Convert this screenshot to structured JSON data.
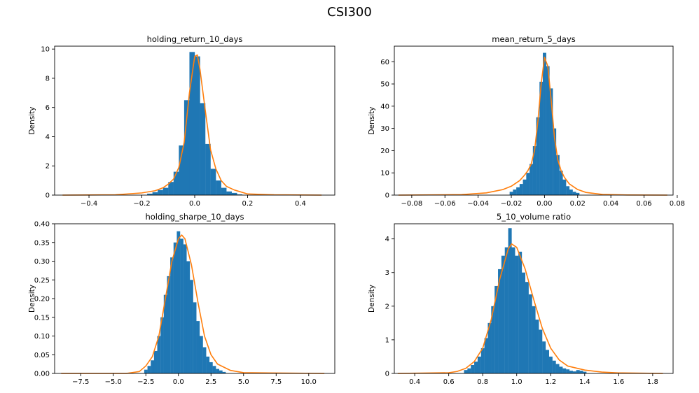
{
  "figure": {
    "title": "CSI300",
    "colors": {
      "bars": "#1f77b4",
      "kde": "#ff7f0e",
      "axes": "#000000"
    }
  },
  "chart_data": [
    {
      "type": "bar",
      "title": "holding_return_10_days",
      "xlabel": "",
      "ylabel": "Density",
      "xlim": [
        -0.53,
        0.53
      ],
      "ylim": [
        0,
        10.2
      ],
      "xticks": [
        -0.4,
        -0.2,
        0.0,
        0.2,
        0.4
      ],
      "xtick_labels": [
        "−0.4",
        "−0.2",
        "0.0",
        "0.2",
        "0.4"
      ],
      "yticks": [
        0,
        2,
        4,
        6,
        8,
        10
      ],
      "ytick_labels": [
        "0",
        "2",
        "4",
        "6",
        "8",
        "10"
      ],
      "bins": {
        "x": [
          -0.17,
          -0.15,
          -0.13,
          -0.11,
          -0.09,
          -0.07,
          -0.05,
          -0.03,
          -0.01,
          0.01,
          0.03,
          0.05,
          0.07,
          0.09,
          0.11,
          0.13,
          0.15,
          0.17
        ],
        "width": 0.02,
        "density": [
          0.1,
          0.2,
          0.35,
          0.5,
          0.9,
          1.6,
          3.4,
          6.5,
          9.8,
          9.5,
          6.3,
          3.5,
          1.8,
          1.0,
          0.5,
          0.25,
          0.15,
          0.05
        ]
      },
      "kde": {
        "x": [
          -0.5,
          -0.3,
          -0.2,
          -0.15,
          -0.12,
          -0.1,
          -0.08,
          -0.06,
          -0.04,
          -0.02,
          0.0,
          0.01,
          0.02,
          0.04,
          0.06,
          0.08,
          0.1,
          0.12,
          0.15,
          0.2,
          0.3,
          0.48
        ],
        "y": [
          0,
          0.02,
          0.15,
          0.3,
          0.5,
          0.75,
          1.1,
          1.9,
          3.6,
          7.0,
          9.5,
          9.6,
          8.6,
          5.8,
          3.1,
          1.8,
          1.0,
          0.6,
          0.35,
          0.08,
          0.02,
          0
        ]
      }
    },
    {
      "type": "bar",
      "title": "mean_return_5_days",
      "xlabel": "",
      "ylabel": "Density",
      "xlim": [
        -0.0905,
        0.0775
      ],
      "ylim": [
        0,
        67
      ],
      "xticks": [
        -0.08,
        -0.06,
        -0.04,
        -0.02,
        0.0,
        0.02,
        0.04,
        0.06,
        0.08
      ],
      "xtick_labels": [
        "−0.08",
        "−0.06",
        "−0.04",
        "−0.02",
        "0.00",
        "0.02",
        "0.04",
        "0.06",
        "0.08"
      ],
      "yticks": [
        0,
        10,
        20,
        30,
        40,
        50,
        60
      ],
      "ytick_labels": [
        "0",
        "10",
        "20",
        "30",
        "40",
        "50",
        "60"
      ],
      "bins": {
        "x": [
          -0.02,
          -0.018,
          -0.016,
          -0.014,
          -0.012,
          -0.01,
          -0.008,
          -0.006,
          -0.004,
          -0.002,
          0.0,
          0.002,
          0.004,
          0.006,
          0.008,
          0.01,
          0.012,
          0.014,
          0.016,
          0.018,
          0.02
        ],
        "width": 0.002,
        "density": [
          1.5,
          2.5,
          3.5,
          5,
          7,
          10,
          14,
          22,
          35,
          51,
          64,
          58,
          48,
          30,
          18,
          11,
          7,
          4,
          2.5,
          1.5,
          1
        ]
      },
      "kde": {
        "x": [
          -0.088,
          -0.05,
          -0.035,
          -0.025,
          -0.02,
          -0.015,
          -0.012,
          -0.01,
          -0.008,
          -0.006,
          -0.004,
          -0.002,
          0.0,
          0.002,
          0.004,
          0.006,
          0.008,
          0.01,
          0.012,
          0.015,
          0.02,
          0.025,
          0.035,
          0.05,
          0.074
        ],
        "y": [
          0,
          0.2,
          1,
          2.5,
          4,
          6.5,
          9,
          11,
          14,
          20,
          33,
          50,
          62,
          58,
          43,
          26,
          16,
          11,
          8,
          5,
          2.5,
          1.2,
          0.3,
          0.05,
          0
        ]
      }
    },
    {
      "type": "bar",
      "title": "holding_sharpe_10_days",
      "xlabel": "",
      "ylabel": "Density",
      "xlim": [
        -9.5,
        12.0
      ],
      "ylim": [
        0,
        0.4
      ],
      "xticks": [
        -7.5,
        -5.0,
        -2.5,
        0.0,
        2.5,
        5.0,
        7.5,
        10.0
      ],
      "xtick_labels": [
        "−7.5",
        "−5.0",
        "−2.5",
        "0.0",
        "2.5",
        "5.0",
        "7.5",
        "10.0"
      ],
      "yticks": [
        0.0,
        0.05,
        0.1,
        0.15,
        0.2,
        0.25,
        0.3,
        0.35,
        0.4
      ],
      "ytick_labels": [
        "0.00",
        "0.05",
        "0.10",
        "0.15",
        "0.20",
        "0.25",
        "0.30",
        "0.35",
        "0.40"
      ],
      "bins": {
        "x": [
          -2.5,
          -2.25,
          -2.0,
          -1.75,
          -1.5,
          -1.25,
          -1.0,
          -0.75,
          -0.5,
          -0.25,
          0.0,
          0.25,
          0.5,
          0.75,
          1.0,
          1.25,
          1.5,
          1.75,
          2.0,
          2.25,
          2.5,
          2.75,
          3.0,
          3.25,
          3.5
        ],
        "width": 0.25,
        "density": [
          0.01,
          0.02,
          0.035,
          0.06,
          0.1,
          0.15,
          0.21,
          0.26,
          0.31,
          0.35,
          0.38,
          0.36,
          0.345,
          0.3,
          0.25,
          0.19,
          0.14,
          0.1,
          0.07,
          0.045,
          0.03,
          0.02,
          0.012,
          0.008,
          0.004
        ]
      },
      "kde": {
        "x": [
          -9.0,
          -4.0,
          -3.0,
          -2.5,
          -2.0,
          -1.5,
          -1.0,
          -0.5,
          0.0,
          0.25,
          0.5,
          1.0,
          1.5,
          2.0,
          2.5,
          3.0,
          4.0,
          5.0,
          11.2
        ],
        "y": [
          0,
          0,
          0.005,
          0.02,
          0.045,
          0.1,
          0.2,
          0.3,
          0.36,
          0.37,
          0.36,
          0.29,
          0.19,
          0.1,
          0.05,
          0.025,
          0.008,
          0.002,
          0
        ]
      }
    },
    {
      "type": "bar",
      "title": "5_10_volume ratio",
      "xlabel": "",
      "ylabel": "Density",
      "xlim": [
        0.28,
        1.92
      ],
      "ylim": [
        0,
        4.45
      ],
      "xticks": [
        0.4,
        0.6,
        0.8,
        1.0,
        1.2,
        1.4,
        1.6,
        1.8
      ],
      "xtick_labels": [
        "0.4",
        "0.6",
        "0.8",
        "1.0",
        "1.2",
        "1.4",
        "1.6",
        "1.8"
      ],
      "yticks": [
        0,
        1,
        2,
        3,
        4
      ],
      "ytick_labels": [
        "0",
        "1",
        "2",
        "3",
        "4"
      ],
      "bins": {
        "x": [
          0.7,
          0.72,
          0.74,
          0.76,
          0.78,
          0.8,
          0.82,
          0.84,
          0.86,
          0.88,
          0.9,
          0.92,
          0.94,
          0.96,
          0.98,
          1.0,
          1.02,
          1.04,
          1.06,
          1.08,
          1.1,
          1.12,
          1.14,
          1.16,
          1.18,
          1.2,
          1.22,
          1.24,
          1.26,
          1.28,
          1.3,
          1.32,
          1.34,
          1.36,
          1.38,
          1.4
        ],
        "width": 0.02,
        "density": [
          0.1,
          0.15,
          0.25,
          0.35,
          0.5,
          0.75,
          1.05,
          1.5,
          2.0,
          2.6,
          3.1,
          3.5,
          3.75,
          4.32,
          3.75,
          3.5,
          3.62,
          3.0,
          2.72,
          2.35,
          2.0,
          1.6,
          1.3,
          0.95,
          0.7,
          0.5,
          0.38,
          0.28,
          0.2,
          0.15,
          0.12,
          0.08,
          0.06,
          0.1,
          0.08,
          0.05
        ]
      },
      "kde": {
        "x": [
          0.3,
          0.6,
          0.65,
          0.7,
          0.75,
          0.8,
          0.85,
          0.9,
          0.95,
          0.97,
          1.0,
          1.05,
          1.1,
          1.15,
          1.2,
          1.25,
          1.3,
          1.4,
          1.5,
          1.6,
          1.86
        ],
        "y": [
          0,
          0.02,
          0.06,
          0.15,
          0.35,
          0.75,
          1.6,
          2.8,
          3.7,
          3.85,
          3.75,
          3.1,
          2.2,
          1.35,
          0.75,
          0.4,
          0.22,
          0.1,
          0.04,
          0.015,
          0
        ]
      }
    }
  ]
}
